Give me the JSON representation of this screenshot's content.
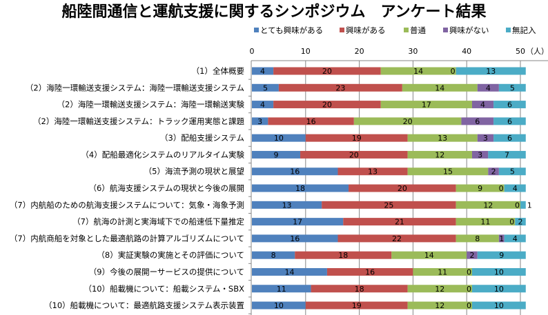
{
  "chart_data": {
    "type": "bar",
    "orientation": "horizontal",
    "stacked": true,
    "title": "船陸間通信と運航支援に関するシンポジウム　アンケート結果",
    "xlabel": "",
    "ylabel": "",
    "x_unit_label": "（人）",
    "xlim": [
      0,
      50
    ],
    "xticks": [
      0,
      10,
      20,
      30,
      40,
      50
    ],
    "grid": true,
    "legend_position": "top",
    "categories": [
      "（1）全体概要",
      "（2）海陸一環輸送支援システム：海陸一環輸送支援システム",
      "（2）海陸一環輸送支援システム：海陸一環輸送実験",
      "（2）海陸一環輸送支援システム：トラック運用実態と課題",
      "（3）配船支援システム",
      "（4）配船最適化システムのリアルタイム実験",
      "（5）海流予測の現状と展望",
      "（6）航海支援システムの現状と今後の展開",
      "（7）内航船のための航海支援システムについて：気象・海象予測",
      "（7）航海の計測と実海域下での船速低下量推定",
      "（7）内航商船を対象とした最適航路の計算アルゴリズムについて",
      "（8）実証実験の実施とその評価について",
      "（9）今後の展開ーサービスの提供について",
      "（10）船載機について：船載システム・SBX",
      "（10）船載機について：最適航路支援システム表示装置"
    ],
    "series": [
      {
        "name": "とても興味がある",
        "color": "#4F81BD",
        "values": [
          4,
          5,
          4,
          3,
          10,
          9,
          16,
          18,
          13,
          17,
          16,
          8,
          14,
          11,
          10
        ]
      },
      {
        "name": "興味がある",
        "color": "#C0504D",
        "values": [
          20,
          23,
          20,
          16,
          19,
          20,
          13,
          20,
          25,
          21,
          22,
          18,
          16,
          18,
          19
        ]
      },
      {
        "name": "普通",
        "color": "#9BBB59",
        "values": [
          14,
          14,
          17,
          20,
          13,
          12,
          15,
          9,
          12,
          11,
          8,
          14,
          11,
          12,
          12
        ]
      },
      {
        "name": "興味がない",
        "color": "#8064A2",
        "values": [
          0,
          4,
          4,
          6,
          3,
          3,
          2,
          0,
          0,
          0,
          1,
          2,
          0,
          0,
          0
        ]
      },
      {
        "name": "無記入",
        "color": "#4BACC6",
        "values": [
          13,
          5,
          6,
          6,
          6,
          7,
          5,
          4,
          1,
          2,
          4,
          9,
          10,
          10,
          10
        ]
      }
    ]
  }
}
